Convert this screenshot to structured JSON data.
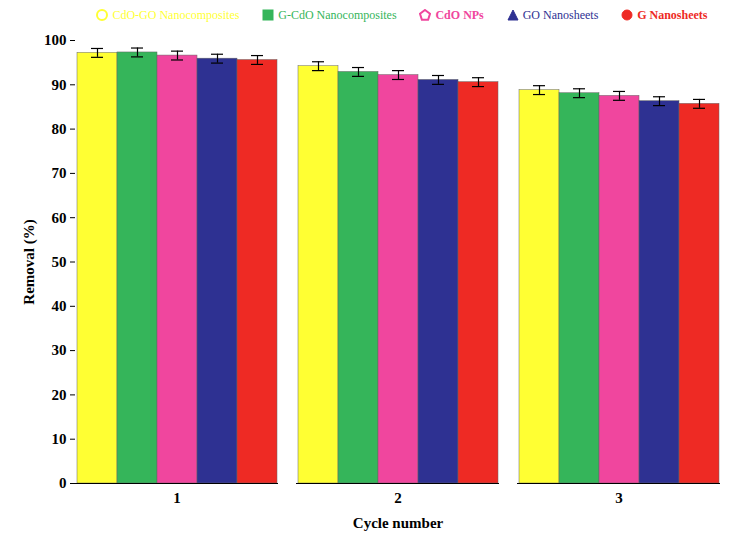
{
  "chart_data": {
    "type": "bar",
    "xlabel": "Cycle number",
    "ylabel": "Removal (%)",
    "categories": [
      "1",
      "2",
      "3"
    ],
    "series": [
      {
        "name": "CdO-GO Nanocomposites",
        "color": "#ffff33",
        "marker": "circle",
        "values": [
          97.2,
          94.2,
          88.8
        ],
        "errors": [
          1.0,
          1.0,
          1.0
        ]
      },
      {
        "name": "G-CdO Nanocomposites",
        "color": "#35b55a",
        "marker": "square",
        "values": [
          97.3,
          92.9,
          88.1
        ],
        "errors": [
          1.0,
          1.0,
          1.0
        ]
      },
      {
        "name": "CdO NPs",
        "color": "#f0469e",
        "marker": "pentagon",
        "values": [
          96.6,
          92.2,
          87.5
        ],
        "errors": [
          1.0,
          1.0,
          1.0
        ]
      },
      {
        "name": "GO Nanosheets",
        "color": "#2e3192",
        "marker": "triangle",
        "values": [
          95.9,
          91.1,
          86.3
        ],
        "errors": [
          1.0,
          1.0,
          1.0
        ]
      },
      {
        "name": "G Nanosheets",
        "color": "#ee2a24",
        "marker": "circle",
        "values": [
          95.6,
          90.6,
          85.7
        ],
        "errors": [
          1.0,
          1.0,
          1.0
        ]
      }
    ],
    "ylim": [
      0,
      100
    ],
    "yticks": [
      0,
      10,
      20,
      30,
      40,
      50,
      60,
      70,
      80,
      90,
      100
    ],
    "grid": false,
    "legend": "top"
  }
}
